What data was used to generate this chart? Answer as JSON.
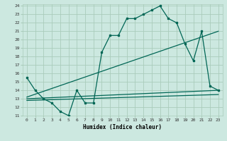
{
  "title": "",
  "xlabel": "Humidex (Indice chaleur)",
  "background_color": "#cce8e0",
  "grid_color": "#aaccbb",
  "line_color": "#006655",
  "xlim": [
    -0.5,
    23.5
  ],
  "ylim": [
    11,
    24.2
  ],
  "yticks": [
    11,
    12,
    13,
    14,
    15,
    16,
    17,
    18,
    19,
    20,
    21,
    22,
    23,
    24
  ],
  "xticks": [
    0,
    1,
    2,
    3,
    4,
    5,
    6,
    7,
    8,
    9,
    10,
    11,
    12,
    13,
    14,
    15,
    16,
    17,
    18,
    19,
    20,
    21,
    22,
    23
  ],
  "series1_x": [
    0,
    1,
    2,
    3,
    4,
    5,
    6,
    7,
    8,
    9,
    10,
    11,
    12,
    13,
    14,
    15,
    16,
    17,
    18,
    19,
    20,
    21,
    22,
    23
  ],
  "series1_y": [
    15.5,
    14.0,
    13.0,
    12.5,
    11.5,
    11.0,
    14.0,
    12.5,
    12.5,
    18.5,
    20.5,
    20.5,
    22.5,
    22.5,
    23.0,
    23.5,
    24.0,
    22.5,
    22.0,
    19.5,
    17.5,
    21.0,
    14.5,
    14.0
  ],
  "series2_x": [
    0,
    23
  ],
  "series2_y": [
    13.2,
    21.0
  ],
  "series3_x": [
    0,
    23
  ],
  "series3_y": [
    13.0,
    14.0
  ],
  "series4_x": [
    0,
    23
  ],
  "series4_y": [
    12.8,
    13.5
  ]
}
